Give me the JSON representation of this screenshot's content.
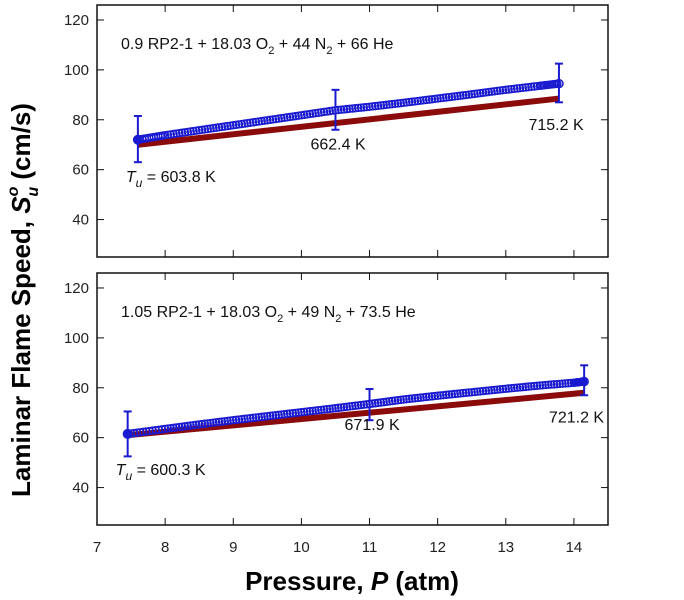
{
  "chart_data": [
    {
      "type": "scatter",
      "panel": "top",
      "xlim": [
        7,
        14.5
      ],
      "ylim": [
        25,
        126
      ],
      "yticks": [
        40,
        60,
        80,
        100,
        120
      ],
      "xticks": [
        7,
        8,
        9,
        10,
        11,
        12,
        13,
        14
      ],
      "mixture": {
        "a": "0.9 RP2-1 + 18.03 O",
        "a_sub": "2",
        "b": " + 44 N",
        "b_sub": "2",
        "c": " + 66 He"
      },
      "temperature_labels": [
        {
          "prefix": "T",
          "sub": "u",
          "text": " = 603.8 K",
          "x": 7.6,
          "y": 55
        },
        {
          "text": "662.4 K",
          "x": 10.5,
          "y": 68
        },
        {
          "text": "715.2 K",
          "x": 13.7,
          "y": 76
        }
      ],
      "measured": {
        "color": "#1a1ad0",
        "x": [
          7.6,
          8,
          8.5,
          9,
          9.5,
          10,
          10.5,
          11,
          11.5,
          12,
          12.5,
          13,
          13.5,
          13.78
        ],
        "y": [
          72,
          73.8,
          75.8,
          77.8,
          79.8,
          81.8,
          83.8,
          85.2,
          86.8,
          88.5,
          90.2,
          92,
          93.6,
          94.5
        ]
      },
      "model": {
        "color": "#8b0a0a",
        "x": [
          7.6,
          13.78
        ],
        "y": [
          70,
          88.5
        ]
      },
      "error_bars": [
        {
          "x": 7.6,
          "low": 63,
          "high": 81.5
        },
        {
          "x": 10.5,
          "low": 76,
          "high": 92
        },
        {
          "x": 13.78,
          "low": 87,
          "high": 102.5
        }
      ]
    },
    {
      "type": "scatter",
      "panel": "bottom",
      "xlim": [
        7,
        14.5
      ],
      "ylim": [
        25,
        126
      ],
      "yticks": [
        40,
        60,
        80,
        100,
        120
      ],
      "xticks": [
        7,
        8,
        9,
        10,
        11,
        12,
        13,
        14
      ],
      "mixture": {
        "a": "1.05 RP2-1 + 18.03 O",
        "a_sub": "2",
        "b": " + 49 N",
        "b_sub": "2",
        "c": " + 73.5 He"
      },
      "temperature_labels": [
        {
          "prefix": "T",
          "sub": "u",
          "text": " = 600.3 K",
          "x": 7.45,
          "y": 45
        },
        {
          "text": "671.9 K",
          "x": 11,
          "y": 63
        },
        {
          "text": "721.2 K",
          "x": 14.0,
          "y": 66
        }
      ],
      "measured": {
        "color": "#1a1ad0",
        "x": [
          7.45,
          8,
          8.5,
          9,
          9.5,
          10,
          10.5,
          11,
          11.5,
          12,
          12.5,
          13,
          13.5,
          14,
          14.15
        ],
        "y": [
          61.5,
          63.5,
          65.3,
          67,
          68.6,
          70.2,
          71.8,
          73.5,
          75.3,
          76.8,
          78.2,
          79.6,
          80.9,
          82,
          82.5
        ]
      },
      "model": {
        "color": "#8b0a0a",
        "x": [
          7.45,
          14.15
        ],
        "y": [
          61,
          78
        ]
      },
      "error_bars": [
        {
          "x": 7.45,
          "low": 52.5,
          "high": 70.5
        },
        {
          "x": 11,
          "low": 67,
          "high": 79.5
        },
        {
          "x": 14.15,
          "low": 77,
          "high": 89
        }
      ]
    }
  ],
  "xlabel": {
    "a": "Pressure, ",
    "b": "P",
    "c": " (atm)"
  },
  "ylabel": {
    "a": "Laminar Flame Speed, ",
    "s": "S",
    "sup": "o",
    "sub": "u",
    "c": " (cm/s)"
  }
}
